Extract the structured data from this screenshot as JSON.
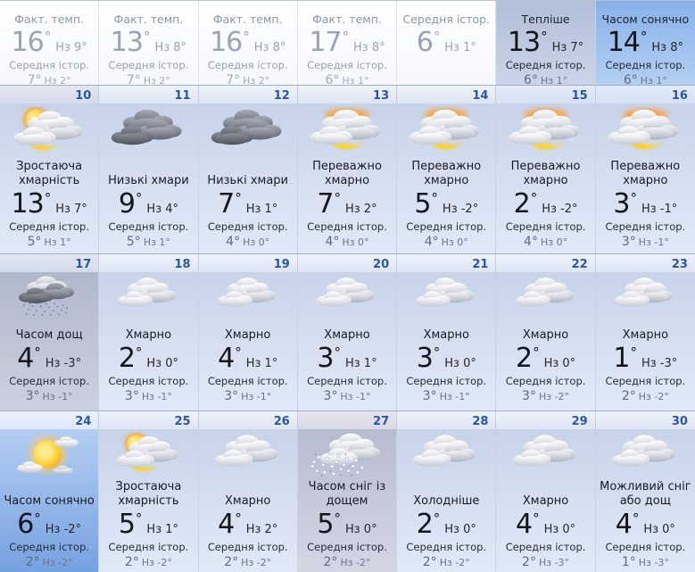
{
  "labels": {
    "actual_temp": "Факт. темп.",
    "hist_avg": "Середня істор.",
    "degree": "°"
  },
  "colors": {
    "date_number": "#2c55a2",
    "forecast_text": "#14161c",
    "past_text": "#9aa3b5",
    "hist_value": "#5e6a84",
    "highlight_blue": "#86b1e9",
    "vivid_blue": "#76a1e0",
    "gray_day": "#b0b8cc"
  },
  "top_row": [
    {
      "variant": "past",
      "bg": "white",
      "title": "Факт. темп.",
      "temp": "16",
      "low": "Нз 9°",
      "hist_temp": "7°",
      "hist_low": "Нз 2°"
    },
    {
      "variant": "past",
      "bg": "white",
      "title": "Факт. темп.",
      "temp": "13",
      "low": "Нз 8°",
      "hist_temp": "7°",
      "hist_low": "Нз 2°"
    },
    {
      "variant": "past",
      "bg": "white",
      "title": "Факт. темп.",
      "temp": "16",
      "low": "Нз 8°",
      "hist_temp": "7°",
      "hist_low": "Нз 2°"
    },
    {
      "variant": "past",
      "bg": "white",
      "title": "Факт. темп.",
      "temp": "17",
      "low": "Нз 8°",
      "hist_temp": "6°",
      "hist_low": "Нз 1°"
    },
    {
      "variant": "hist-only",
      "bg": "white",
      "title": "Середня істор.",
      "temp": "6",
      "low": "Нз 1°"
    },
    {
      "variant": "forecast",
      "bg": "med",
      "title": "Тепліше",
      "temp": "13",
      "low": "Нз 7°",
      "hist_temp": "6°",
      "hist_low": "Нз 1°"
    },
    {
      "variant": "forecast",
      "bg": "bright",
      "title": "Часом сонячно",
      "temp": "14",
      "low": "Нз 8°",
      "hist_temp": "6°",
      "hist_low": "Нз 1°"
    }
  ],
  "weeks": [
    {
      "cells": [
        {
          "date": "10",
          "tone": "dim",
          "bg": "day",
          "icon": "increasing-clouds",
          "phrase": "Зростаюча хмарність",
          "temp": "13",
          "low": "Нз 7°",
          "hist_temp": "5°",
          "hist_low": "Нз 1°"
        },
        {
          "date": "11",
          "tone": "default",
          "bg": "day",
          "icon": "low-clouds",
          "phrase": "Низькі хмари",
          "temp": "9",
          "low": "Нз 4°",
          "hist_temp": "5°",
          "hist_low": "Нз 1°"
        },
        {
          "date": "12",
          "tone": "default",
          "bg": "day",
          "icon": "low-clouds",
          "phrase": "Низькі хмари",
          "temp": "7",
          "low": "Нз 1°",
          "hist_temp": "4°",
          "hist_low": "Нз 0°"
        },
        {
          "date": "13",
          "tone": "default",
          "bg": "day",
          "icon": "mostly-cloudy",
          "phrase": "Переважно хмарно",
          "temp": "7",
          "low": "Нз 2°",
          "hist_temp": "4°",
          "hist_low": "Нз 0°"
        },
        {
          "date": "14",
          "tone": "default",
          "bg": "day",
          "icon": "mostly-cloudy",
          "phrase": "Переважно хмарно",
          "temp": "5",
          "low": "Нз -2°",
          "hist_temp": "4°",
          "hist_low": "Нз 0°"
        },
        {
          "date": "15",
          "tone": "blue",
          "bg": "day",
          "icon": "mostly-cloudy",
          "phrase": "Переважно хмарно",
          "temp": "2",
          "low": "Нз -2°",
          "hist_temp": "4°",
          "hist_low": "Нз 0°"
        },
        {
          "date": "16",
          "tone": "blue",
          "bg": "day",
          "icon": "mostly-cloudy",
          "phrase": "Переважно хмарно",
          "temp": "3",
          "low": "Нз -1°",
          "hist_temp": "3°",
          "hist_low": "Нз -1°"
        }
      ]
    },
    {
      "cells": [
        {
          "date": "17",
          "tone": "dim",
          "bg": "gray",
          "icon": "rain",
          "phrase": "Часом дощ",
          "temp": "4",
          "low": "Нз -3°",
          "hist_temp": "3°",
          "hist_low": "Нз -1°"
        },
        {
          "date": "18",
          "tone": "default",
          "bg": "day",
          "icon": "cloudy",
          "phrase": "Хмарно",
          "temp": "2",
          "low": "Нз 0°",
          "hist_temp": "3°",
          "hist_low": "Нз -1°"
        },
        {
          "date": "19",
          "tone": "default",
          "bg": "day",
          "icon": "cloudy",
          "phrase": "Хмарно",
          "temp": "4",
          "low": "Нз 1°",
          "hist_temp": "3°",
          "hist_low": "Нз -1°"
        },
        {
          "date": "20",
          "tone": "default",
          "bg": "day",
          "icon": "cloudy",
          "phrase": "Хмарно",
          "temp": "3",
          "low": "Нз 1°",
          "hist_temp": "3°",
          "hist_low": "Нз -1°"
        },
        {
          "date": "21",
          "tone": "default",
          "bg": "day",
          "icon": "cloudy",
          "phrase": "Хмарно",
          "temp": "3",
          "low": "Нз 0°",
          "hist_temp": "3°",
          "hist_low": "Нз -1°"
        },
        {
          "date": "22",
          "tone": "default",
          "bg": "day",
          "icon": "cloudy",
          "phrase": "Хмарно",
          "temp": "2",
          "low": "Нз 0°",
          "hist_temp": "3°",
          "hist_low": "Нз -2°"
        },
        {
          "date": "23",
          "tone": "default",
          "bg": "day",
          "icon": "cloudy",
          "phrase": "Хмарно",
          "temp": "1",
          "low": "Нз -3°",
          "hist_temp": "2°",
          "hist_low": "Нз -2°"
        }
      ]
    },
    {
      "cells": [
        {
          "date": "24",
          "tone": "lite",
          "bg": "vivid",
          "icon": "partly-sunny",
          "phrase": "Часом сонячно",
          "temp": "6",
          "low": "Нз -2°",
          "hist_temp": "2°",
          "hist_low": "Нз -2°"
        },
        {
          "date": "25",
          "tone": "default",
          "bg": "day",
          "icon": "increasing-clouds",
          "phrase": "Зростаюча хмарність",
          "temp": "5",
          "low": "Нз 1°",
          "hist_temp": "2°",
          "hist_low": "Нз -2°"
        },
        {
          "date": "26",
          "tone": "default",
          "bg": "day",
          "icon": "cloudy",
          "phrase": "Хмарно",
          "temp": "4",
          "low": "Нз 2°",
          "hist_temp": "2°",
          "hist_low": "Нз -2°"
        },
        {
          "date": "27",
          "tone": "dim-lav",
          "bg": "lav",
          "icon": "sleet",
          "phrase": "Часом сніг із дощем",
          "temp": "5",
          "low": "Нз 0°",
          "hist_temp": "2°",
          "hist_low": "Нз -2°"
        },
        {
          "date": "28",
          "tone": "default",
          "bg": "day",
          "icon": "cloudy",
          "phrase": "Холодніше",
          "temp": "2",
          "low": "Нз 0°",
          "hist_temp": "2°",
          "hist_low": "Нз -2°"
        },
        {
          "date": "29",
          "tone": "default",
          "bg": "day",
          "icon": "cloudy",
          "phrase": "Хмарно",
          "temp": "4",
          "low": "Нз 0°",
          "hist_temp": "2°",
          "hist_low": "Нз -3°"
        },
        {
          "date": "30",
          "tone": "default",
          "bg": "day",
          "icon": "cloudy",
          "phrase": "Можливий сніг або дощ",
          "temp": "4",
          "low": "Нз 0°",
          "hist_temp": "1°",
          "hist_low": "Нз -3°"
        }
      ]
    }
  ]
}
